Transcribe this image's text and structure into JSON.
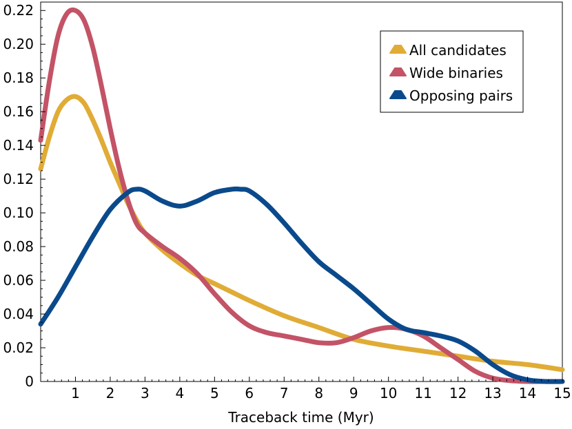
{
  "chart_data": {
    "type": "line",
    "title": "",
    "xlabel": "Traceback time (Myr)",
    "ylabel": "",
    "xlim": [
      0,
      15
    ],
    "ylim": [
      0,
      0.225
    ],
    "x_ticks": [
      1,
      2,
      3,
      4,
      5,
      6,
      7,
      8,
      9,
      10,
      11,
      12,
      13,
      14,
      15
    ],
    "x_tick_labels": [
      "1",
      "2",
      "3",
      "4",
      "5",
      "6",
      "7",
      "8",
      "9",
      "10",
      "11",
      "12",
      "13",
      "14",
      "15"
    ],
    "y_ticks": [
      0,
      0.02,
      0.04,
      0.06,
      0.08,
      0.1,
      0.12,
      0.14,
      0.16,
      0.18,
      0.2,
      0.22
    ],
    "y_tick_labels": [
      "0",
      "0.02",
      "0.04",
      "0.06",
      "0.08",
      "0.10",
      "0.12",
      "0.14",
      "0.16",
      "0.18",
      "0.20",
      "0.22"
    ],
    "grid": false,
    "legend_position": "top-right",
    "series": [
      {
        "name": "All candidates",
        "color": "#E0AC36",
        "x": [
          0,
          0.25,
          0.5,
          0.75,
          1.0,
          1.25,
          1.5,
          1.75,
          2.0,
          2.25,
          2.5,
          2.75,
          3.0,
          3.5,
          4.0,
          4.5,
          5.0,
          5.5,
          6.0,
          7.0,
          8.0,
          9.0,
          10.0,
          11.0,
          12.0,
          13.0,
          14.0,
          15.0
        ],
        "y": [
          0.126,
          0.145,
          0.16,
          0.167,
          0.169,
          0.165,
          0.155,
          0.143,
          0.13,
          0.118,
          0.106,
          0.096,
          0.088,
          0.078,
          0.07,
          0.063,
          0.058,
          0.053,
          0.048,
          0.039,
          0.032,
          0.025,
          0.021,
          0.018,
          0.015,
          0.012,
          0.01,
          0.007
        ]
      },
      {
        "name": "Wide binaries",
        "color": "#C35366",
        "x": [
          0,
          0.25,
          0.5,
          0.75,
          1.0,
          1.25,
          1.5,
          1.75,
          2.0,
          2.25,
          2.5,
          2.75,
          3.0,
          3.5,
          4.0,
          4.5,
          5.0,
          5.5,
          6.0,
          6.5,
          7.0,
          7.5,
          8.0,
          8.5,
          9.0,
          9.5,
          10.0,
          10.5,
          11.0,
          11.5,
          12.0,
          12.5,
          13.0,
          13.5,
          14.0,
          14.5,
          15.0
        ],
        "y": [
          0.143,
          0.178,
          0.205,
          0.218,
          0.22,
          0.214,
          0.198,
          0.175,
          0.15,
          0.127,
          0.108,
          0.094,
          0.088,
          0.08,
          0.073,
          0.064,
          0.052,
          0.041,
          0.033,
          0.029,
          0.027,
          0.025,
          0.023,
          0.023,
          0.026,
          0.03,
          0.032,
          0.031,
          0.027,
          0.02,
          0.013,
          0.006,
          0.002,
          0.0005,
          0,
          0,
          0
        ]
      },
      {
        "name": "Opposing pairs",
        "color": "#0A4A8C",
        "x": [
          0,
          0.5,
          1.0,
          1.5,
          2.0,
          2.5,
          2.75,
          3.0,
          3.5,
          4.0,
          4.5,
          5.0,
          5.5,
          5.75,
          6.0,
          6.5,
          7.0,
          7.5,
          8.0,
          8.5,
          9.0,
          9.5,
          10.0,
          10.5,
          11.0,
          11.5,
          12.0,
          12.5,
          13.0,
          13.5,
          14.0,
          14.5,
          15.0
        ],
        "y": [
          0.034,
          0.05,
          0.068,
          0.086,
          0.102,
          0.112,
          0.114,
          0.113,
          0.107,
          0.104,
          0.107,
          0.112,
          0.114,
          0.114,
          0.113,
          0.105,
          0.094,
          0.082,
          0.071,
          0.063,
          0.055,
          0.046,
          0.037,
          0.031,
          0.029,
          0.027,
          0.024,
          0.018,
          0.01,
          0.004,
          0.001,
          0,
          0
        ]
      }
    ]
  }
}
